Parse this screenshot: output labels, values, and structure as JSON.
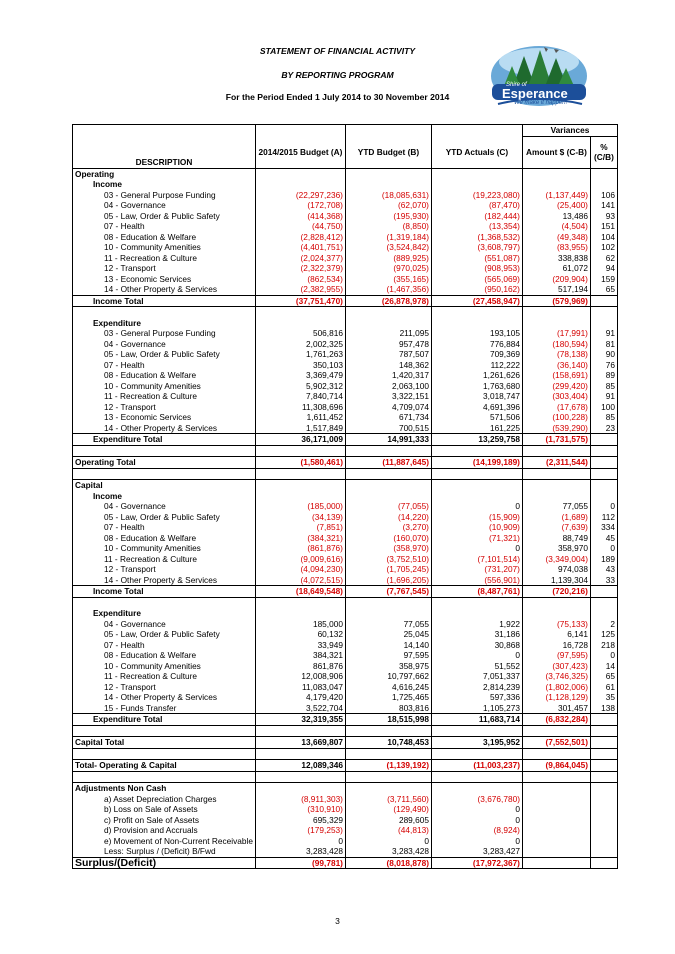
{
  "header": {
    "title": "STATEMENT OF FINANCIAL ACTIVITY",
    "subtitle": "BY REPORTING PROGRAM",
    "period": "For the Period Ended 1 July 2014 to 30 November 2014",
    "logo_text_top": "Shire of",
    "logo_text": "Esperance",
    "logo_slogan": "We make it happen!"
  },
  "columns": {
    "variances": "Variances",
    "description": "DESCRIPTION",
    "budget": "2014/2015 Budget (A)",
    "ytd_budget": "YTD Budget (B)",
    "ytd_actuals": "YTD Actuals (C)",
    "amount": "Amount $ (C-B)",
    "pct": "% (C/B)"
  },
  "rows": [
    {
      "type": "section",
      "label": "Operating"
    },
    {
      "type": "sub",
      "label": "Income"
    },
    {
      "type": "item",
      "label": "03 - General Purpose Funding",
      "a": "(22,297,236)",
      "b": "(18,085,631)",
      "c": "(19,223,080)",
      "d": "(1,137,449)",
      "e": "106"
    },
    {
      "type": "item",
      "label": "04 - Governance",
      "a": "(172,708)",
      "b": "(62,070)",
      "c": "(87,470)",
      "d": "(25,400)",
      "e": "141"
    },
    {
      "type": "item",
      "label": "05 - Law, Order & Public Safety",
      "a": "(414,368)",
      "b": "(195,930)",
      "c": "(182,444)",
      "d": "13,486",
      "e": "93"
    },
    {
      "type": "item",
      "label": "07 - Health",
      "a": "(44,750)",
      "b": "(8,850)",
      "c": "(13,354)",
      "d": "(4,504)",
      "e": "151"
    },
    {
      "type": "item",
      "label": "08 - Education & Welfare",
      "a": "(2,828,412)",
      "b": "(1,319,184)",
      "c": "(1,368,532)",
      "d": "(49,348)",
      "e": "104"
    },
    {
      "type": "item",
      "label": "10 - Community Amenities",
      "a": "(4,401,751)",
      "b": "(3,524,842)",
      "c": "(3,608,797)",
      "d": "(83,955)",
      "e": "102"
    },
    {
      "type": "item",
      "label": "11 - Recreation & Culture",
      "a": "(2,024,377)",
      "b": "(889,925)",
      "c": "(551,087)",
      "d": "338,838",
      "e": "62"
    },
    {
      "type": "item",
      "label": "12 - Transport",
      "a": "(2,322,379)",
      "b": "(970,025)",
      "c": "(908,953)",
      "d": "61,072",
      "e": "94"
    },
    {
      "type": "item",
      "label": "13 - Economic Services",
      "a": "(862,534)",
      "b": "(355,165)",
      "c": "(565,069)",
      "d": "(209,904)",
      "e": "159"
    },
    {
      "type": "item",
      "label": "14 - Other Property & Services",
      "a": "(2,382,955)",
      "b": "(1,467,356)",
      "c": "(950,162)",
      "d": "517,194",
      "e": "65"
    },
    {
      "type": "total",
      "label": "Income Total",
      "a": "(37,751,470)",
      "b": "(26,878,978)",
      "c": "(27,458,947)",
      "d": "(579,969)",
      "e": ""
    },
    {
      "type": "gap"
    },
    {
      "type": "sub",
      "label": "Expenditure"
    },
    {
      "type": "item",
      "label": "03 - General Purpose Funding",
      "a": "506,816",
      "b": "211,095",
      "c": "193,105",
      "d": "(17,991)",
      "e": "91"
    },
    {
      "type": "item",
      "label": "04 - Governance",
      "a": "2,002,325",
      "b": "957,478",
      "c": "776,884",
      "d": "(180,594)",
      "e": "81"
    },
    {
      "type": "item",
      "label": "05 - Law, Order & Public Safety",
      "a": "1,761,263",
      "b": "787,507",
      "c": "709,369",
      "d": "(78,138)",
      "e": "90"
    },
    {
      "type": "item",
      "label": "07 - Health",
      "a": "350,103",
      "b": "148,362",
      "c": "112,222",
      "d": "(36,140)",
      "e": "76"
    },
    {
      "type": "item",
      "label": "08 - Education & Welfare",
      "a": "3,369,479",
      "b": "1,420,317",
      "c": "1,261,626",
      "d": "(158,691)",
      "e": "89"
    },
    {
      "type": "item",
      "label": "10 - Community Amenities",
      "a": "5,902,312",
      "b": "2,063,100",
      "c": "1,763,680",
      "d": "(299,420)",
      "e": "85"
    },
    {
      "type": "item",
      "label": "11 - Recreation & Culture",
      "a": "7,840,714",
      "b": "3,322,151",
      "c": "3,018,747",
      "d": "(303,404)",
      "e": "91"
    },
    {
      "type": "item",
      "label": "12 - Transport",
      "a": "11,308,696",
      "b": "4,709,074",
      "c": "4,691,396",
      "d": "(17,678)",
      "e": "100"
    },
    {
      "type": "item",
      "label": "13 - Economic Services",
      "a": "1,611,452",
      "b": "671,734",
      "c": "571,506",
      "d": "(100,228)",
      "e": "85"
    },
    {
      "type": "item",
      "label": "14 - Other Property & Services",
      "a": "1,517,849",
      "b": "700,515",
      "c": "161,225",
      "d": "(539,290)",
      "e": "23"
    },
    {
      "type": "total",
      "label": "Expenditure Total",
      "a": "36,171,009",
      "b": "14,991,333",
      "c": "13,259,758",
      "d": "(1,731,575)",
      "e": ""
    },
    {
      "type": "gap"
    },
    {
      "type": "grand",
      "label": "Operating Total",
      "a": "(1,580,461)",
      "b": "(11,887,645)",
      "c": "(14,199,189)",
      "d": "(2,311,544)",
      "e": ""
    },
    {
      "type": "gap"
    },
    {
      "type": "section",
      "label": "Capital",
      "extra": true
    },
    {
      "type": "sub",
      "label": "Income"
    },
    {
      "type": "item",
      "label": "04 - Governance",
      "a": "(185,000)",
      "b": "(77,055)",
      "c": "0",
      "d": "77,055",
      "e": "0"
    },
    {
      "type": "item",
      "label": "05 - Law, Order & Public Safety",
      "a": "(34,139)",
      "b": "(14,220)",
      "c": "(15,909)",
      "d": "(1,689)",
      "e": "112"
    },
    {
      "type": "item",
      "label": "07 - Health",
      "a": "(7,851)",
      "b": "(3,270)",
      "c": "(10,909)",
      "d": "(7,639)",
      "e": "334"
    },
    {
      "type": "item",
      "label": "08 - Education & Welfare",
      "a": "(384,321)",
      "b": "(160,070)",
      "c": "(71,321)",
      "d": "88,749",
      "e": "45"
    },
    {
      "type": "item",
      "label": "10 - Community Amenities",
      "a": "(861,876)",
      "b": "(358,970)",
      "c": "0",
      "d": "358,970",
      "e": "0"
    },
    {
      "type": "item",
      "label": "11 - Recreation & Culture",
      "a": "(9,009,616)",
      "b": "(3,752,510)",
      "c": "(7,101,514)",
      "d": "(3,349,004)",
      "e": "189"
    },
    {
      "type": "item",
      "label": "12 - Transport",
      "a": "(4,094,230)",
      "b": "(1,705,245)",
      "c": "(731,207)",
      "d": "974,038",
      "e": "43"
    },
    {
      "type": "item",
      "label": "14 - Other Property & Services",
      "a": "(4,072,515)",
      "b": "(1,696,205)",
      "c": "(556,901)",
      "d": "1,139,304",
      "e": "33"
    },
    {
      "type": "total",
      "label": "Income Total",
      "a": "(18,649,548)",
      "b": "(7,767,545)",
      "c": "(8,487,761)",
      "d": "(720,216)",
      "e": ""
    },
    {
      "type": "gap"
    },
    {
      "type": "sub",
      "label": "Expenditure"
    },
    {
      "type": "item",
      "label": "04 - Governance",
      "a": "185,000",
      "b": "77,055",
      "c": "1,922",
      "d": "(75,133)",
      "e": "2"
    },
    {
      "type": "item",
      "label": "05 - Law, Order & Public Safety",
      "a": "60,132",
      "b": "25,045",
      "c": "31,186",
      "d": "6,141",
      "e": "125"
    },
    {
      "type": "item",
      "label": "07 - Health",
      "a": "33,949",
      "b": "14,140",
      "c": "30,868",
      "d": "16,728",
      "e": "218"
    },
    {
      "type": "item",
      "label": "08 - Education & Welfare",
      "a": "384,321",
      "b": "97,595",
      "c": "0",
      "d": "(97,595)",
      "e": "0"
    },
    {
      "type": "item",
      "label": "10 - Community Amenities",
      "a": "861,876",
      "b": "358,975",
      "c": "51,552",
      "d": "(307,423)",
      "e": "14"
    },
    {
      "type": "item",
      "label": "11 - Recreation & Culture",
      "a": "12,008,906",
      "b": "10,797,662",
      "c": "7,051,337",
      "d": "(3,746,325)",
      "e": "65"
    },
    {
      "type": "item",
      "label": "12 - Transport",
      "a": "11,083,047",
      "b": "4,616,245",
      "c": "2,814,239",
      "d": "(1,802,006)",
      "e": "61"
    },
    {
      "type": "item",
      "label": "14 - Other Property & Services",
      "a": "4,179,420",
      "b": "1,725,465",
      "c": "597,336",
      "d": "(1,128,129)",
      "e": "35"
    },
    {
      "type": "item",
      "label": "15 - Funds Transfer",
      "a": "3,522,704",
      "b": "803,816",
      "c": "1,105,273",
      "d": "301,457",
      "e": "138"
    },
    {
      "type": "total",
      "label": "Expenditure Total",
      "a": "32,319,355",
      "b": "18,515,998",
      "c": "11,683,714",
      "d": "(6,832,284)",
      "e": ""
    },
    {
      "type": "gap"
    },
    {
      "type": "grand",
      "label": "Capital Total",
      "a": "13,669,807",
      "b": "10,748,453",
      "c": "3,195,952",
      "d": "(7,552,501)",
      "e": ""
    },
    {
      "type": "gap"
    },
    {
      "type": "grand",
      "label": "Total- Operating & Capital",
      "a": "12,089,346",
      "b": "(1,139,192)",
      "c": "(11,003,237)",
      "d": "(9,864,045)",
      "e": ""
    },
    {
      "type": "gap"
    },
    {
      "type": "section",
      "label": "Adjustments Non Cash",
      "extra": true
    },
    {
      "type": "adj",
      "label": "a) Asset Depreciation Charges",
      "a": "(8,911,303)",
      "b": "(3,711,560)",
      "c": "(3,676,780)"
    },
    {
      "type": "adj",
      "label": "b) Loss on Sale of Assets",
      "a": "(310,910)",
      "b": "(129,490)",
      "c": "0"
    },
    {
      "type": "adj",
      "label": "c) Profit on Sale of Assets",
      "a": "695,329",
      "b": "289,605",
      "c": "0"
    },
    {
      "type": "adj",
      "label": "d) Provision and Accruals",
      "a": "(179,253)",
      "b": "(44,813)",
      "c": "(8,924)"
    },
    {
      "type": "adj",
      "label": "e) Movement of Non-Current Receivable",
      "a": "0",
      "b": "0",
      "c": "0"
    },
    {
      "type": "adj",
      "label": "Less: Surplus / (Deficit) B/Fwd",
      "a": "3,283,428",
      "b": "3,283,428",
      "c": "3,283,427"
    },
    {
      "type": "final",
      "label": "Surplus/(Deficit)",
      "a": "(99,781)",
      "b": "(8,018,878)",
      "c": "(17,972,367)"
    }
  ],
  "page_number": "3"
}
